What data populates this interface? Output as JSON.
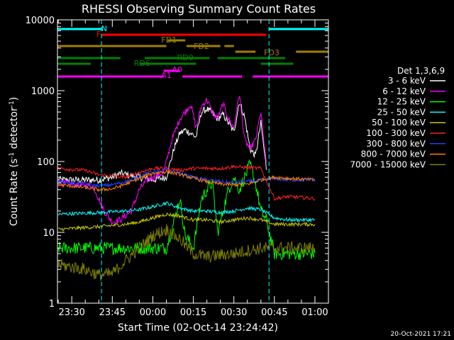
{
  "chart_data": {
    "type": "line",
    "title": "RHESSI Observing Summary Count Rates",
    "xlabel": "Start Time (02-Oct-14 23:24:42)",
    "ylabel_main": "Count Rate (s",
    "ylabel_sup1": "-1",
    "ylabel_mid": " detector",
    "ylabel_sup2": "-1",
    "ylabel_end": ")",
    "yscale": "log",
    "ylim": [
      1,
      10000
    ],
    "xlim_minutes": [
      -35.3,
      65
    ],
    "x_tick_labels": [
      "23:30",
      "23:45",
      "00:00",
      "00:15",
      "00:30",
      "00:45",
      "01:00"
    ],
    "y_tick_labels": [
      "1",
      "10",
      "100",
      "1000",
      "10000"
    ],
    "legend_title": "Det 1,3,6,9",
    "legend_position": "right",
    "series": [
      {
        "name": "3 - 6 keV",
        "color": "#ffffff",
        "x": [
          -35,
          -20,
          -15,
          -12,
          -5,
          0,
          5,
          8,
          10,
          12,
          14,
          16,
          18,
          20,
          22,
          24,
          26,
          28,
          30,
          32,
          34,
          36,
          38,
          40,
          42
        ],
        "y": [
          55,
          55,
          60,
          68,
          60,
          55,
          60,
          160,
          250,
          280,
          250,
          220,
          500,
          550,
          480,
          400,
          460,
          350,
          260,
          700,
          420,
          150,
          120,
          350,
          80
        ]
      },
      {
        "name": "6 - 12 keV",
        "color": "#ff00ff",
        "x": [
          -35,
          -22,
          -18,
          -15,
          -12,
          -8,
          -5,
          -2,
          0,
          4,
          7,
          10,
          12,
          14,
          16,
          18,
          20,
          22,
          24,
          26,
          28,
          30,
          32,
          34,
          36,
          38,
          40,
          42
        ],
        "y": [
          50,
          45,
          20,
          14,
          15,
          20,
          40,
          55,
          60,
          70,
          200,
          400,
          500,
          650,
          300,
          600,
          750,
          500,
          400,
          650,
          400,
          300,
          900,
          200,
          150,
          200,
          500,
          90
        ]
      },
      {
        "name": "12 - 25 keV",
        "color": "#00ff00",
        "x": [
          -35,
          -20,
          -15,
          -5,
          0,
          5,
          8,
          10,
          12,
          15,
          18,
          20,
          22,
          24,
          26,
          28,
          30,
          32,
          34,
          36,
          38,
          40,
          42,
          45,
          60
        ],
        "y": [
          6,
          6,
          6,
          6,
          6,
          6,
          15,
          30,
          9,
          6,
          30,
          40,
          50,
          10,
          20,
          40,
          60,
          40,
          60,
          90,
          50,
          20,
          15,
          5,
          5
        ]
      },
      {
        "name": "25 - 50 keV",
        "color": "#00ffff",
        "x": [
          -35,
          -20,
          -10,
          -5,
          0,
          5,
          10,
          15,
          20,
          25,
          30,
          35,
          40,
          45,
          50,
          60
        ],
        "y": [
          18,
          19,
          20,
          21,
          23,
          26,
          22,
          20,
          20,
          19,
          20,
          22,
          21,
          16,
          15,
          15
        ]
      },
      {
        "name": "50 - 100 keV",
        "color": "#cccc00",
        "x": [
          -35,
          -20,
          -10,
          -5,
          0,
          5,
          10,
          15,
          20,
          25,
          30,
          35,
          40,
          45,
          60
        ],
        "y": [
          11,
          12,
          13,
          14,
          16,
          18,
          17,
          15,
          15,
          14,
          15,
          16,
          15,
          13,
          13
        ]
      },
      {
        "name": "100 - 300 keV",
        "color": "#ff2020",
        "x": [
          -35,
          -25,
          -20,
          -10,
          -5,
          0,
          5,
          10,
          15,
          20,
          25,
          30,
          35,
          40,
          45,
          50,
          60
        ],
        "y": [
          80,
          75,
          65,
          60,
          70,
          80,
          80,
          75,
          80,
          80,
          80,
          85,
          82,
          80,
          30,
          32,
          30
        ]
      },
      {
        "name": "300 - 800 keV",
        "color": "#2040ff",
        "x": [
          -35,
          -25,
          -20,
          -15,
          -10,
          -5,
          0,
          5,
          10,
          15,
          20,
          25,
          30,
          35,
          40,
          45,
          50,
          60
        ],
        "y": [
          52,
          48,
          45,
          47,
          52,
          62,
          72,
          75,
          68,
          60,
          55,
          52,
          50,
          52,
          55,
          57,
          55,
          55
        ]
      },
      {
        "name": "800 - 7000 keV",
        "color": "#ff8000",
        "x": [
          -35,
          -25,
          -20,
          -15,
          -10,
          -5,
          0,
          5,
          10,
          15,
          20,
          25,
          30,
          35,
          40,
          45,
          50,
          60
        ],
        "y": [
          47,
          43,
          40,
          41,
          48,
          58,
          68,
          72,
          66,
          58,
          52,
          48,
          47,
          48,
          55,
          60,
          58,
          55
        ]
      },
      {
        "name": "7000 - 15000 keV",
        "color": "#808000",
        "x": [
          -35,
          -25,
          -20,
          -15,
          -10,
          -5,
          0,
          5,
          10,
          15,
          20,
          25,
          30,
          35,
          40,
          45,
          50,
          60
        ],
        "y": [
          3.5,
          3,
          2.5,
          2.6,
          4,
          6,
          9,
          11,
          8,
          5,
          4.5,
          4.8,
          5,
          5.5,
          6,
          6,
          6,
          6
        ]
      }
    ],
    "flag_segments": [
      {
        "label": "N",
        "color": "#00ffff",
        "segments": [
          [
            -35.3,
            -19
          ],
          [
            43,
            65
          ]
        ]
      },
      {
        "label": "F",
        "color": "#ff0000",
        "segments": [
          [
            -19,
            42
          ]
        ]
      },
      {
        "label": "FD1",
        "color": "#a08000",
        "segments": [
          [
            5.5,
            12
          ]
        ]
      },
      {
        "label": "FD2",
        "color": "#a08000",
        "segments": [
          [
            -35.3,
            5
          ],
          [
            12.5,
            25
          ],
          [
            26.5,
            30
          ]
        ]
      },
      {
        "label": "FD3",
        "color": "#a08000",
        "segments": [
          [
            30.5,
            38
          ],
          [
            53,
            65
          ]
        ]
      },
      {
        "label": "RD0",
        "color": "#008000",
        "segments": [
          [
            -35.3,
            -12
          ],
          [
            -3,
            21
          ],
          [
            24,
            49
          ]
        ]
      },
      {
        "label": "RD6",
        "color": "#008000",
        "segments": [
          [
            -35.3,
            -23
          ],
          [
            -5,
            16
          ],
          [
            40,
            52
          ]
        ]
      },
      {
        "label": "A0",
        "color": "#ff00ff",
        "segments": [
          [
            4,
            10
          ]
        ]
      },
      {
        "label": "A1",
        "color": "#ff00ff",
        "segments": [
          [
            -35.3,
            4
          ],
          [
            11,
            33
          ],
          [
            37,
            65
          ]
        ]
      }
    ]
  },
  "footer": {
    "timestamp": "20-Oct-2021 17:21"
  }
}
